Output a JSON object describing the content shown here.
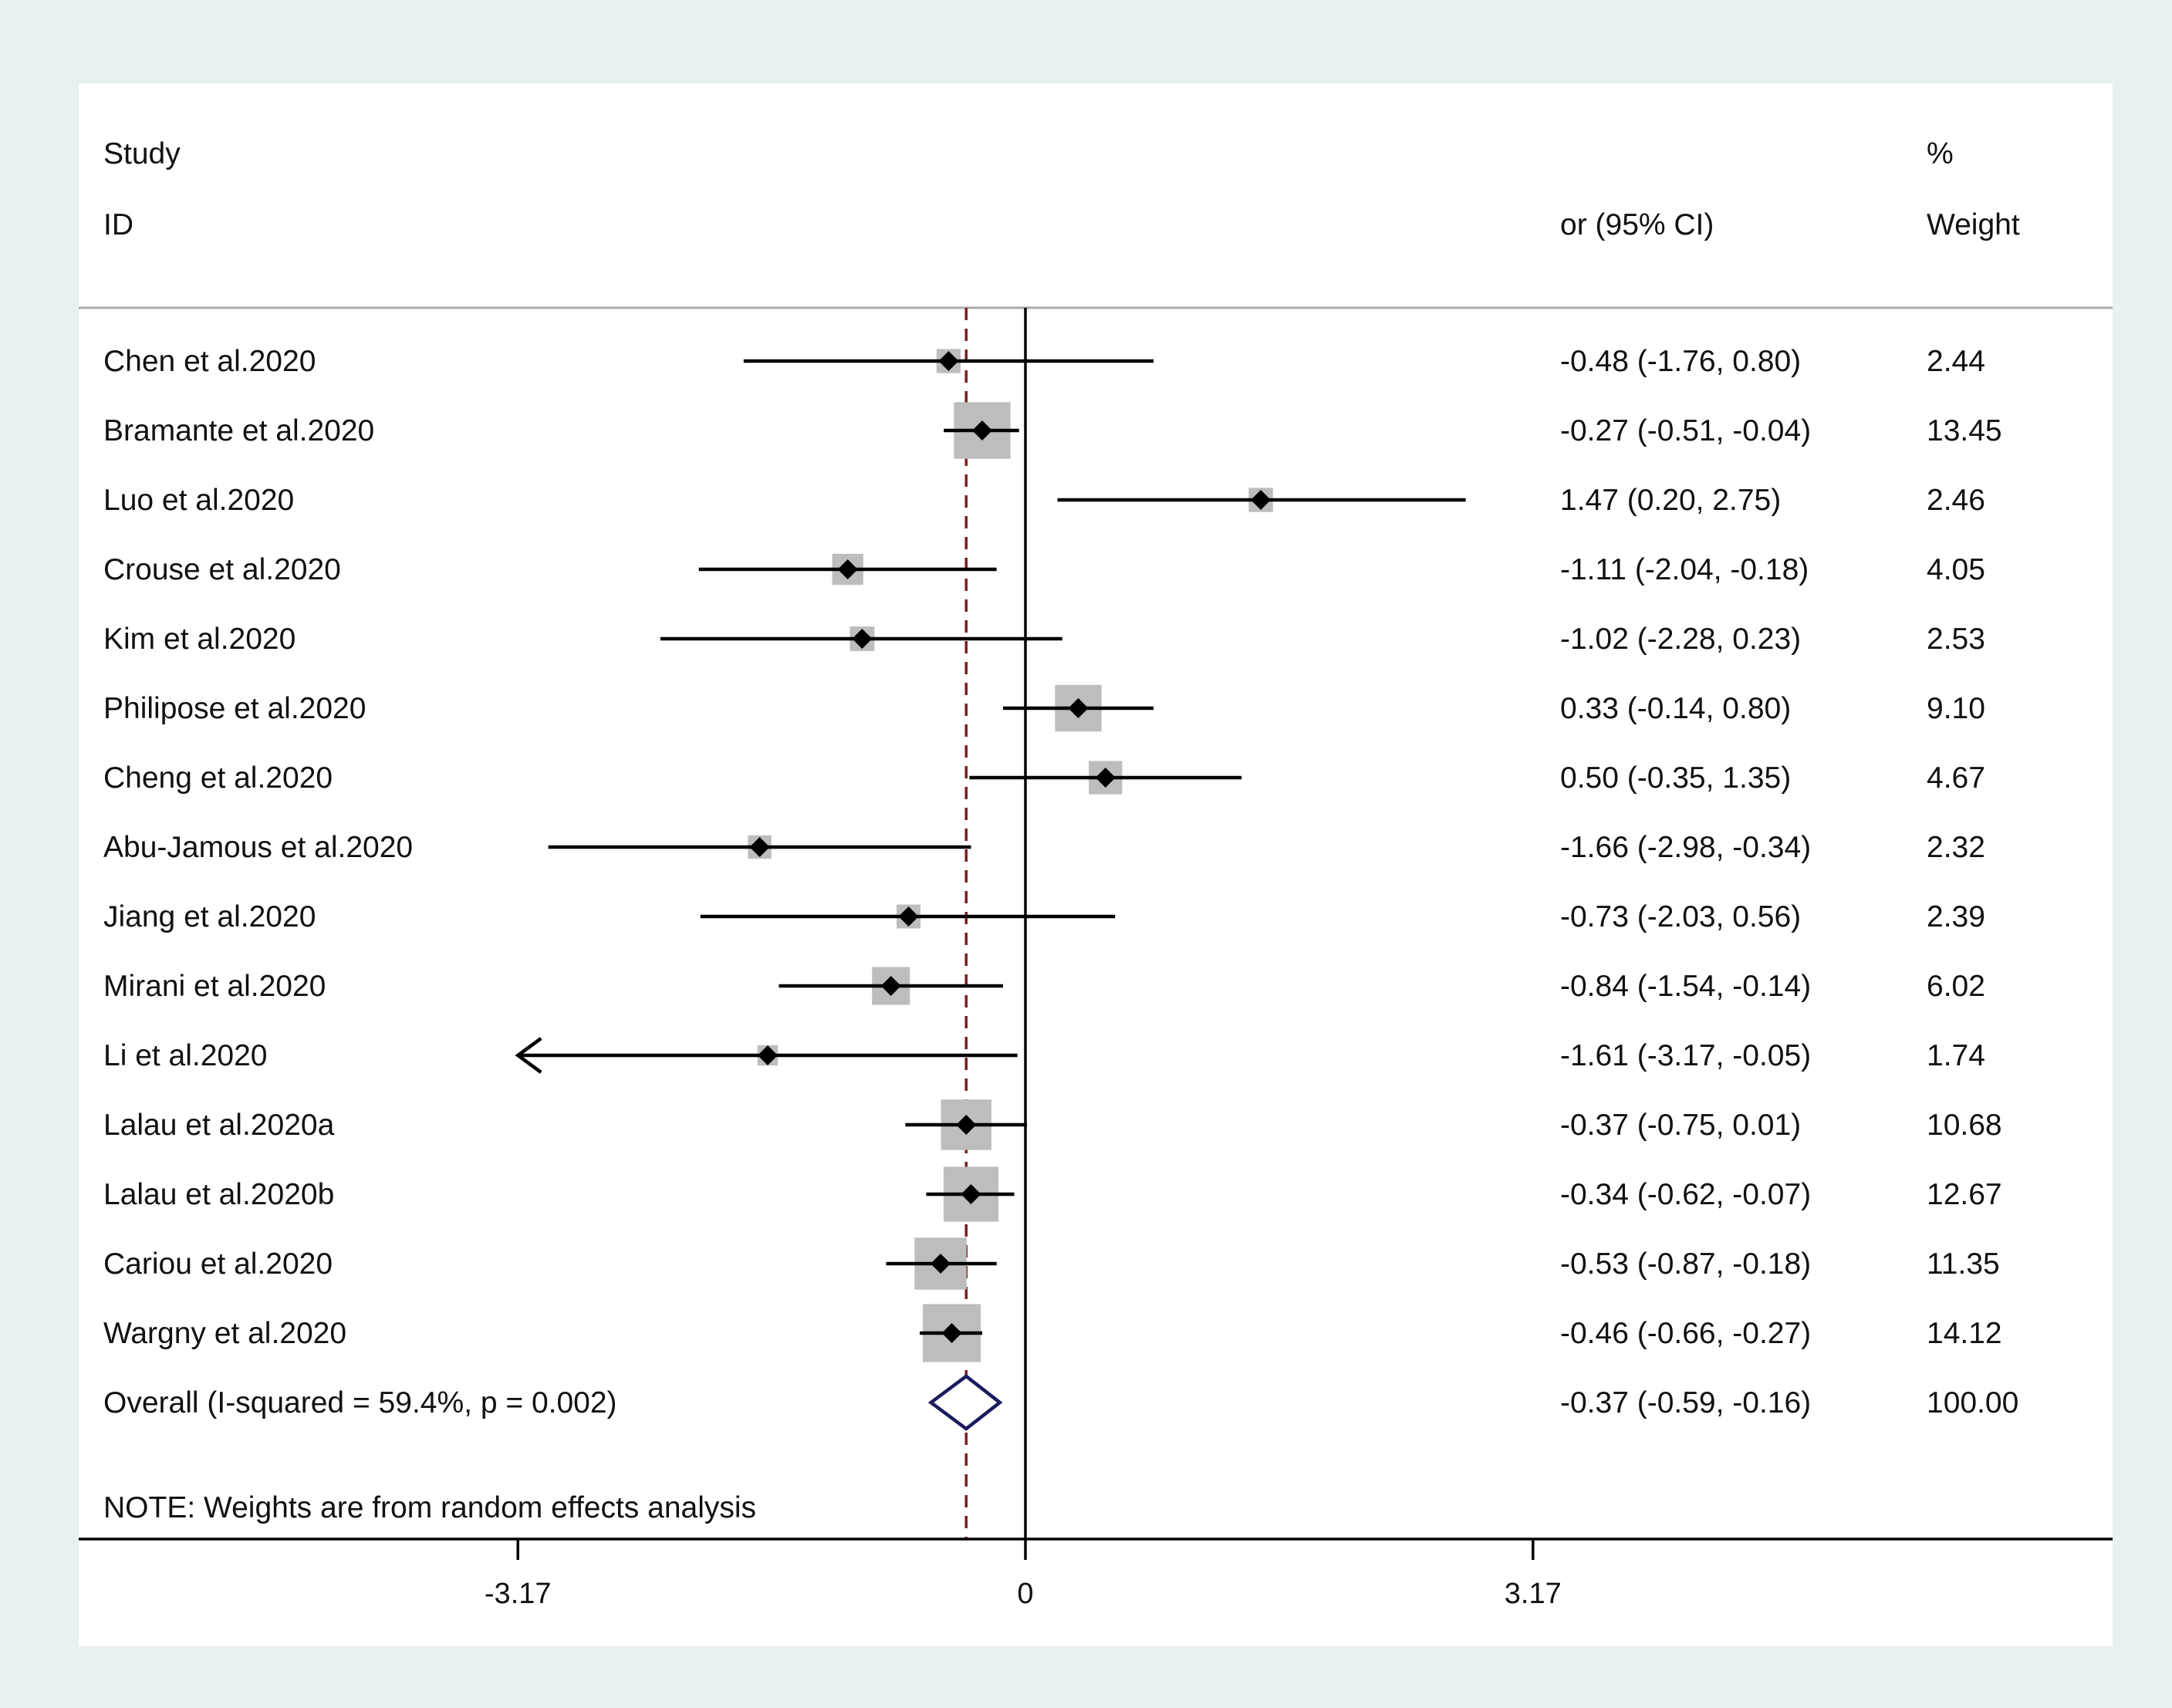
{
  "chart_data": {
    "type": "forest",
    "headers": {
      "study_line1": "Study",
      "study_line2": "ID",
      "effect": "or (95% CI)",
      "weight_line1": "%",
      "weight_line2": "Weight"
    },
    "studies": [
      {
        "name": "Chen et al.2020",
        "est": -0.48,
        "lo": -1.76,
        "hi": 0.8,
        "ci_text": "-0.48 (-1.76, 0.80)",
        "weight": 2.44,
        "weight_text": "2.44"
      },
      {
        "name": "Bramante et al.2020",
        "est": -0.27,
        "lo": -0.51,
        "hi": -0.04,
        "ci_text": "-0.27 (-0.51, -0.04)",
        "weight": 13.45,
        "weight_text": "13.45"
      },
      {
        "name": "Luo et al.2020",
        "est": 1.47,
        "lo": 0.2,
        "hi": 2.75,
        "ci_text": "1.47 (0.20, 2.75)",
        "weight": 2.46,
        "weight_text": "2.46"
      },
      {
        "name": "Crouse et al.2020",
        "est": -1.11,
        "lo": -2.04,
        "hi": -0.18,
        "ci_text": "-1.11 (-2.04, -0.18)",
        "weight": 4.05,
        "weight_text": "4.05"
      },
      {
        "name": "Kim et al.2020",
        "est": -1.02,
        "lo": -2.28,
        "hi": 0.23,
        "ci_text": "-1.02 (-2.28, 0.23)",
        "weight": 2.53,
        "weight_text": "2.53"
      },
      {
        "name": "Philipose et al.2020",
        "est": 0.33,
        "lo": -0.14,
        "hi": 0.8,
        "ci_text": "0.33 (-0.14, 0.80)",
        "weight": 9.1,
        "weight_text": "9.10"
      },
      {
        "name": "Cheng et al.2020",
        "est": 0.5,
        "lo": -0.35,
        "hi": 1.35,
        "ci_text": "0.50 (-0.35, 1.35)",
        "weight": 4.67,
        "weight_text": "4.67"
      },
      {
        "name": "Abu-Jamous et al.2020",
        "est": -1.66,
        "lo": -2.98,
        "hi": -0.34,
        "ci_text": "-1.66 (-2.98, -0.34)",
        "weight": 2.32,
        "weight_text": "2.32"
      },
      {
        "name": "Jiang et al.2020",
        "est": -0.73,
        "lo": -2.03,
        "hi": 0.56,
        "ci_text": "-0.73 (-2.03, 0.56)",
        "weight": 2.39,
        "weight_text": "2.39"
      },
      {
        "name": "Mirani et al.2020",
        "est": -0.84,
        "lo": -1.54,
        "hi": -0.14,
        "ci_text": "-0.84 (-1.54, -0.14)",
        "weight": 6.02,
        "weight_text": "6.02"
      },
      {
        "name": "Li et al.2020",
        "est": -1.61,
        "lo": -3.17,
        "hi": -0.05,
        "ci_text": "-1.61 (-3.17, -0.05)",
        "weight": 1.74,
        "weight_text": "1.74",
        "lower_arrow": true
      },
      {
        "name": "Lalau et al.2020a",
        "est": -0.37,
        "lo": -0.75,
        "hi": 0.01,
        "ci_text": "-0.37 (-0.75, 0.01)",
        "weight": 10.68,
        "weight_text": "10.68"
      },
      {
        "name": "Lalau et al.2020b",
        "est": -0.34,
        "lo": -0.62,
        "hi": -0.07,
        "ci_text": "-0.34 (-0.62, -0.07)",
        "weight": 12.67,
        "weight_text": "12.67"
      },
      {
        "name": "Cariou et al.2020",
        "est": -0.53,
        "lo": -0.87,
        "hi": -0.18,
        "ci_text": "-0.53 (-0.87, -0.18)",
        "weight": 11.35,
        "weight_text": "11.35"
      },
      {
        "name": "Wargny et al.2020",
        "est": -0.46,
        "lo": -0.66,
        "hi": -0.27,
        "ci_text": "-0.46 (-0.66, -0.27)",
        "weight": 14.12,
        "weight_text": "14.12"
      }
    ],
    "overall": {
      "label": "Overall  (I-squared = 59.4%, p = 0.002)",
      "est": -0.37,
      "lo": -0.59,
      "hi": -0.16,
      "ci_text": "-0.37 (-0.59, -0.16)",
      "weight_text": "100.00"
    },
    "note": "NOTE: Weights are from random effects analysis",
    "x_axis": {
      "ticks": [
        -3.17,
        0,
        3.17
      ],
      "tick_labels": [
        "-3.17",
        "0",
        "3.17"
      ],
      "xlim": [
        -3.17,
        3.17
      ]
    },
    "colors": {
      "ci_line": "#000000",
      "weight_box": "#bdbdbd",
      "point": "#000000",
      "overall_diamond": "#1a1a5e",
      "pooled_line": "#7a1f1f",
      "background": "#e9f0f1",
      "panel": "#ffffff"
    }
  }
}
